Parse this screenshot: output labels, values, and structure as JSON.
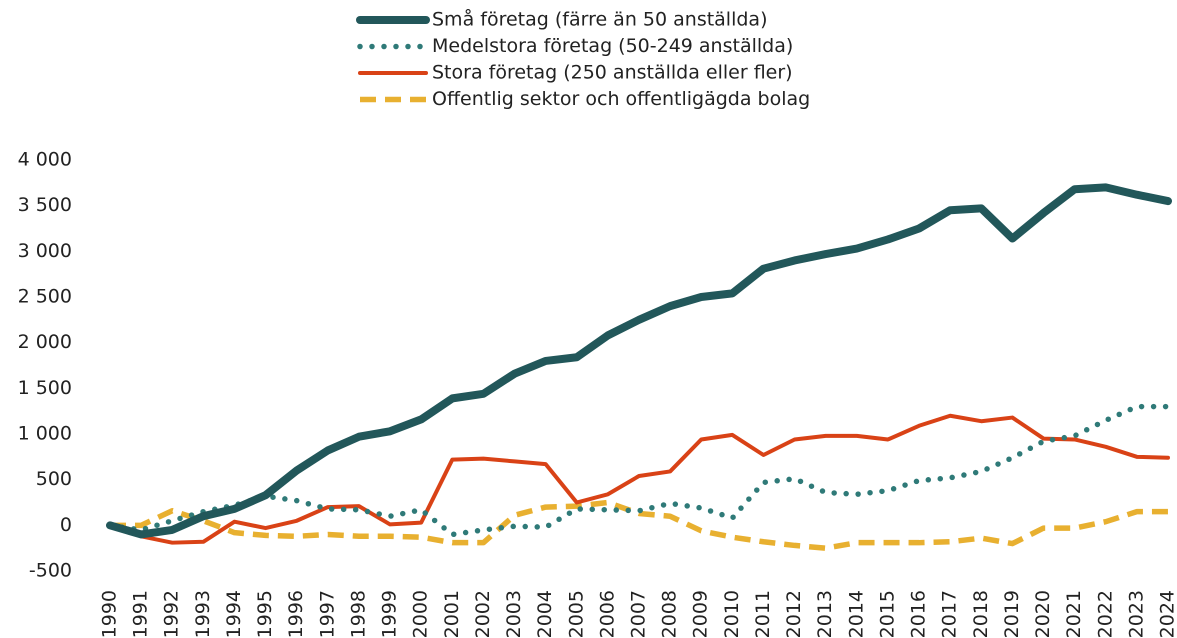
{
  "chart_data": {
    "type": "line",
    "categories": [
      "1990",
      "1991",
      "1992",
      "1993",
      "1994",
      "1995",
      "1996",
      "1997",
      "1998",
      "1999",
      "2000",
      "2001",
      "2002",
      "2003",
      "2004",
      "2005",
      "2006",
      "2007",
      "2008",
      "2009",
      "2010",
      "2011",
      "2012",
      "2013",
      "2014",
      "2015",
      "2016",
      "2017",
      "2018",
      "2019",
      "2020",
      "2021",
      "2022",
      "2023",
      "2024"
    ],
    "series": [
      {
        "name": "Små företag (färre än 50 anställda)",
        "color": "#22575a",
        "line_style": "solid",
        "values": [
          0,
          -100,
          -50,
          100,
          180,
          330,
          600,
          820,
          970,
          1030,
          1160,
          1390,
          1440,
          1660,
          1800,
          1840,
          2080,
          2250,
          2400,
          2500,
          2540,
          2810,
          2900,
          2970,
          3030,
          3130,
          3250,
          3450,
          3470,
          3140,
          3420,
          3680,
          3700,
          3620,
          3550
        ]
      },
      {
        "name": "Medelstora företag (50-249 anställda)",
        "color": "#2f7a78",
        "line_style": "dotted",
        "values": [
          0,
          -50,
          50,
          150,
          220,
          320,
          270,
          180,
          170,
          100,
          170,
          -100,
          -50,
          -10,
          -20,
          180,
          170,
          160,
          240,
          190,
          80,
          470,
          510,
          360,
          340,
          380,
          490,
          520,
          590,
          740,
          920,
          980,
          1150,
          1300,
          1300
        ]
      },
      {
        "name": "Stora företag (250 anställda eller fler)",
        "color": "#d94216",
        "line_style": "solid",
        "values": [
          0,
          -120,
          -190,
          -180,
          40,
          -30,
          50,
          200,
          210,
          10,
          30,
          720,
          730,
          700,
          670,
          250,
          340,
          540,
          590,
          940,
          990,
          770,
          940,
          980,
          980,
          940,
          1090,
          1200,
          1140,
          1180,
          950,
          940,
          860,
          750,
          740
        ]
      },
      {
        "name": "Offentlig sektor och offentligägda bolag",
        "color": "#e8b030",
        "line_style": "dashed",
        "values": [
          0,
          0,
          160,
          50,
          -80,
          -110,
          -120,
          -100,
          -120,
          -120,
          -130,
          -190,
          -190,
          110,
          200,
          210,
          250,
          130,
          100,
          -60,
          -130,
          -180,
          -220,
          -250,
          -190,
          -190,
          -190,
          -180,
          -140,
          -200,
          -30,
          -30,
          40,
          150,
          150
        ]
      }
    ],
    "ylim": [
      -500,
      4000
    ],
    "yticks": [
      -500,
      0,
      500,
      {
        "value": 1000,
        "label": "1 000"
      },
      {
        "value": 1500,
        "label": "1 500"
      },
      {
        "value": 2000,
        "label": "2 000"
      },
      {
        "value": 2500,
        "label": "2 500"
      },
      {
        "value": 3000,
        "label": "3 000"
      },
      {
        "value": 3500,
        "label": "3 500"
      },
      {
        "value": 4000,
        "label": "4 000"
      }
    ],
    "legend": "top",
    "grid": false
  }
}
